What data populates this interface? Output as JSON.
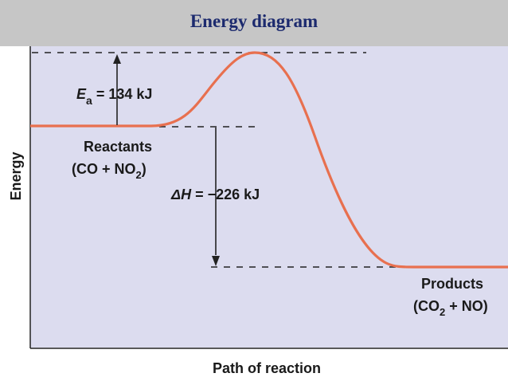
{
  "header": {
    "title": "Energy diagram"
  },
  "diagram": {
    "y_axis_label": "Energy",
    "x_axis_label": "Path of reaction",
    "activation": {
      "symbol": "E",
      "subscript": "a",
      "rest": " = 134 kJ"
    },
    "delta_h": {
      "symbol": "ΔH",
      "rest": " = −226 kJ"
    },
    "reactants": {
      "name": "Reactants",
      "open": "(CO + NO",
      "sub": "2",
      "close": ")"
    },
    "products": {
      "name": "Products",
      "open": "(CO",
      "sub": "2",
      "close": " + NO)"
    },
    "colors": {
      "panel": "#dcdcef",
      "curve": "#e8704f",
      "title": "#1c2a6e",
      "header": "#c6c6c6"
    }
  }
}
